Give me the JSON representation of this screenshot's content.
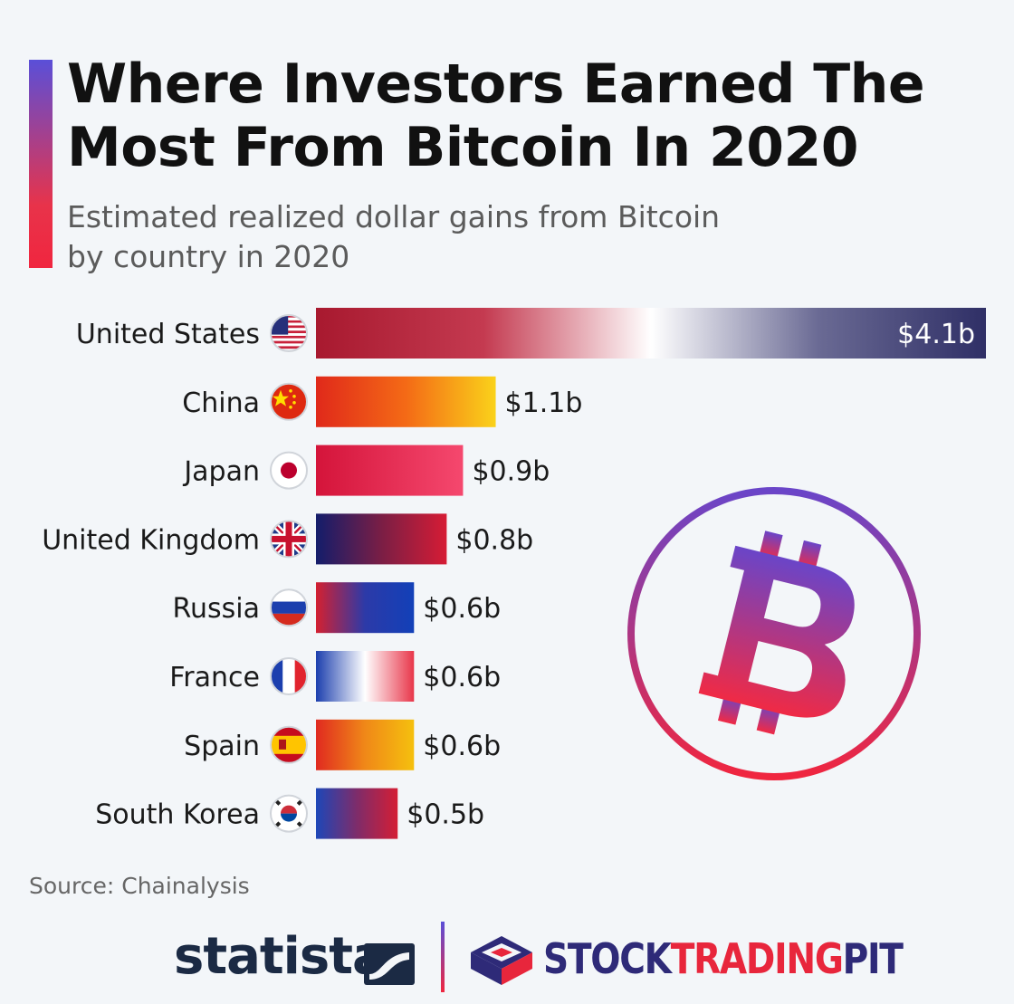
{
  "header": {
    "title": "Where Investors Earned The\nMost From Bitcoin In 2020",
    "subtitle": "Estimated realized dollar gains from Bitcoin\nby country in 2020"
  },
  "colors": {
    "accent_top": "#5a4fd8",
    "accent_bottom": "#f0263f",
    "bitcoin_purple": "#6a45c8",
    "bitcoin_red": "#f0263f"
  },
  "chart_data": {
    "type": "bar",
    "orientation": "horizontal",
    "title": "Where Investors Earned The Most From Bitcoin In 2020",
    "categories": [
      "United States",
      "China",
      "Japan",
      "United Kingdom",
      "Russia",
      "France",
      "Spain",
      "South Korea"
    ],
    "values": [
      4.1,
      1.1,
      0.9,
      0.8,
      0.6,
      0.6,
      0.6,
      0.5
    ],
    "value_labels": [
      "$4.1b",
      "$1.1b",
      "$0.9b",
      "$0.8b",
      "$0.6b",
      "$0.6b",
      "$0.6b",
      "$0.5b"
    ],
    "unit": "billion USD",
    "flag_icons": [
      "us-flag-icon",
      "china-flag-icon",
      "japan-flag-icon",
      "uk-flag-icon",
      "russia-flag-icon",
      "france-flag-icon",
      "spain-flag-icon",
      "south-korea-flag-icon"
    ],
    "bar_gradients": [
      [
        "#a8192f",
        "#c43a50",
        "#ffffff",
        "#6a6a94",
        "#2f2f66"
      ],
      [
        "#e0291a",
        "#f46a16",
        "#fad21a"
      ],
      [
        "#d4143a",
        "#f5486e"
      ],
      [
        "#131d6b",
        "#7a1e45",
        "#d61c35"
      ],
      [
        "#d42030",
        "#2c3aa8",
        "#1240b8"
      ],
      [
        "#1c3fae",
        "#ffffff",
        "#e8364a"
      ],
      [
        "#e02a20",
        "#f08818",
        "#f5c00e"
      ],
      [
        "#1d47b8",
        "#7e2c6a",
        "#d41e35"
      ]
    ],
    "xlim": [
      0,
      4.1
    ],
    "grid": false,
    "legend": "none"
  },
  "decoration": {
    "icon": "bitcoin-logo-icon"
  },
  "source": "Source: Chainalysis",
  "footer": {
    "statista": "statista",
    "stp_part1": "STOCK",
    "stp_part2": "TRADING",
    "stp_part3": "PIT"
  }
}
